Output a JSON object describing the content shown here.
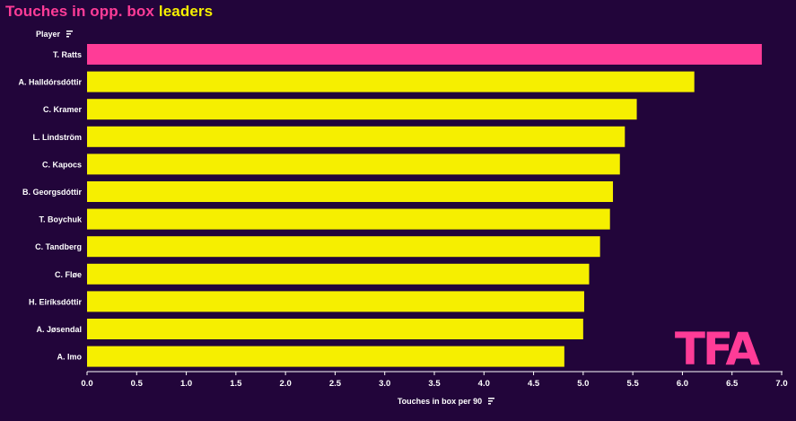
{
  "title": {
    "part1": "Touches in opp. box",
    "part2": "leaders"
  },
  "colors": {
    "background": "#22053a",
    "highlight": "#ff3c97",
    "bar": "#f6ef00",
    "text": "#ffffff"
  },
  "logo": {
    "text": "TFA",
    "color": "#ff3c97"
  },
  "chart_data": {
    "type": "bar",
    "orientation": "horizontal",
    "ylabel": "Player",
    "xlabel": "Touches in box per 90",
    "xlim": [
      0,
      7.0
    ],
    "xticks": [
      "0.0",
      "0.5",
      "1.0",
      "1.5",
      "2.0",
      "2.5",
      "3.0",
      "3.5",
      "4.0",
      "4.5",
      "5.0",
      "5.5",
      "6.0",
      "6.5",
      "7.0"
    ],
    "categories": [
      "T. Ratts",
      "A. Halldórsdóttir",
      "C. Kramer",
      "L. Lindström",
      "C. Kapocs",
      "B. Georgsdóttir",
      "T. Boychuk",
      "C. Tandberg",
      "C. Fløe",
      "H. Eiríksdóttir",
      "A. Jøsendal",
      "A. Imo"
    ],
    "values": [
      6.8,
      6.12,
      5.54,
      5.42,
      5.37,
      5.3,
      5.27,
      5.17,
      5.06,
      5.01,
      5.0,
      4.81
    ],
    "highlighted": [
      "T. Ratts"
    ],
    "grid": false,
    "legend": false
  }
}
